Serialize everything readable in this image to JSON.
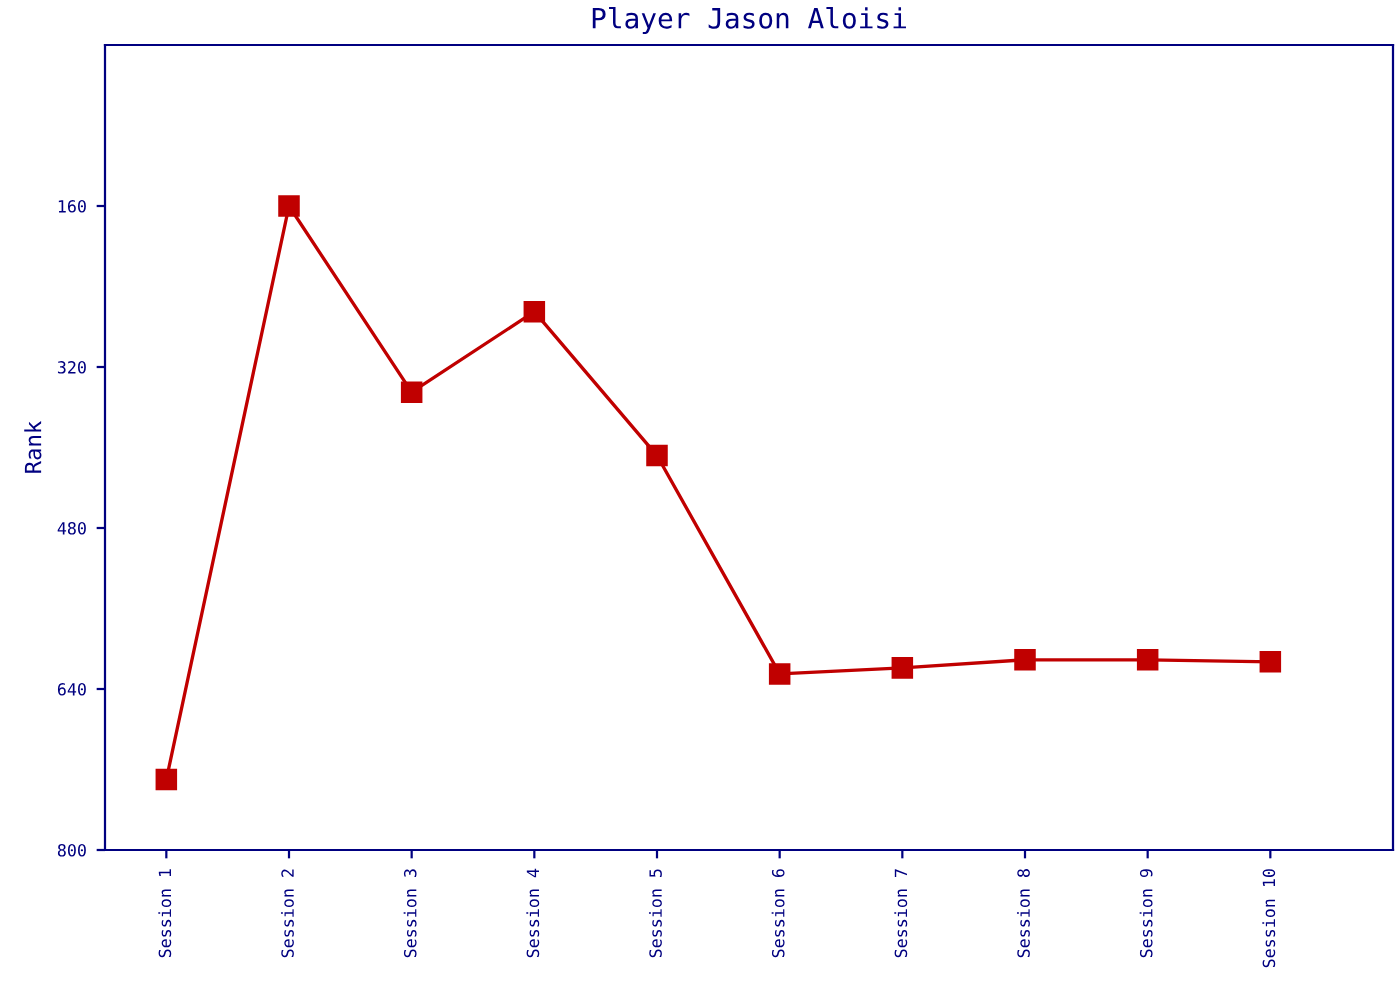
{
  "chart_data": {
    "type": "line",
    "title": "Player Jason Aloisi",
    "ylabel": "Rank",
    "categories": [
      "Session 1",
      "Session 2",
      "Session 3",
      "Session 4",
      "Session 5",
      "Session 6",
      "Session 7",
      "Session 8",
      "Session 9",
      "Session 10"
    ],
    "series": [
      {
        "color": "#c00000",
        "values": [
          730,
          160,
          345,
          265,
          408,
          625,
          619,
          611,
          611,
          613
        ]
      }
    ],
    "ylim": [
      800,
      0
    ],
    "yticks": [
      160,
      320,
      480,
      640,
      800
    ],
    "marker": "square",
    "grid": false,
    "legend": false
  }
}
